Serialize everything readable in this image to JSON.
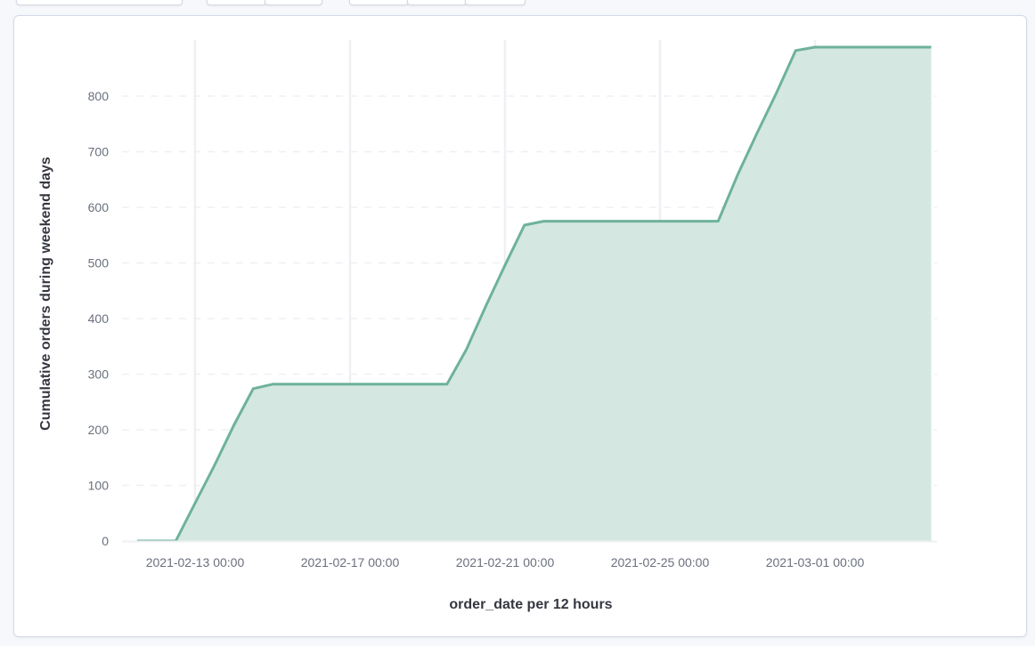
{
  "chart_data": {
    "type": "area",
    "xlabel": "order_date per 12 hours",
    "ylabel": "Cumulative orders during weekend days",
    "ylim": [
      0,
      890
    ],
    "yticks": [
      0,
      100,
      200,
      300,
      400,
      500,
      600,
      700,
      800
    ],
    "xticks": [
      "2021-02-13 00:00",
      "2021-02-17 00:00",
      "2021-02-21 00:00",
      "2021-02-25 00:00",
      "2021-03-01 00:00"
    ],
    "grid": true,
    "color": "#6db29a",
    "fill_color": "#d3e6df",
    "x": [
      "2021-02-11 12:00",
      "2021-02-12 00:00",
      "2021-02-12 12:00",
      "2021-02-13 00:00",
      "2021-02-13 12:00",
      "2021-02-14 00:00",
      "2021-02-14 12:00",
      "2021-02-15 00:00",
      "2021-02-19 12:00",
      "2021-02-20 00:00",
      "2021-02-20 12:00",
      "2021-02-21 00:00",
      "2021-02-21 12:00",
      "2021-02-22 00:00",
      "2021-02-26 12:00",
      "2021-02-27 00:00",
      "2021-02-27 12:00",
      "2021-02-28 00:00",
      "2021-02-28 12:00",
      "2021-03-01 00:00",
      "2021-03-04 00:00"
    ],
    "values": [
      0,
      0,
      0,
      68,
      136,
      208,
      274,
      282,
      282,
      344,
      422,
      496,
      568,
      575,
      575,
      658,
      733,
      805,
      882,
      888,
      888
    ]
  }
}
